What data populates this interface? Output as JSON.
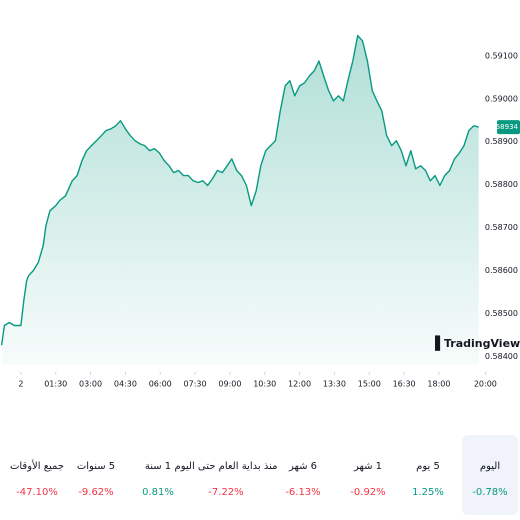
{
  "chart_data": {
    "type": "area",
    "color": "#089981",
    "x": [
      -0.83,
      -0.71,
      -0.5,
      -0.29,
      0,
      0.125,
      0.25,
      0.33,
      0.54,
      0.75,
      0.96,
      1.08,
      1.25,
      1.5,
      1.67,
      1.92,
      2.21,
      2.42,
      2.63,
      2.83,
      3.04,
      3.25,
      3.46,
      3.67,
      3.88,
      4.08,
      4.29,
      4.5,
      4.71,
      4.92,
      5.13,
      5.33,
      5.54,
      5.75,
      5.96,
      6.17,
      6.38,
      6.58,
      6.79,
      7,
      7.21,
      7.42,
      7.63,
      7.83,
      8.04,
      8.25,
      8.46,
      8.67,
      8.88,
      9.08,
      9.29,
      9.5,
      9.71,
      9.92,
      10.13,
      10.33,
      10.54,
      10.75,
      10.96,
      11.17,
      11.38,
      11.58,
      11.79,
      12,
      12.21,
      12.42,
      12.63,
      12.83,
      13.04,
      13.25,
      13.46,
      13.67,
      13.88,
      14.08,
      14.29,
      14.5,
      14.71,
      14.92,
      15.13,
      15.33,
      15.54,
      15.75,
      15.96,
      16.17,
      16.38,
      16.58,
      16.79,
      17,
      17.21,
      17.42,
      17.63,
      17.83,
      18.04,
      18.25,
      18.46,
      18.67,
      18.88,
      19.08,
      19.29,
      19.5,
      19.71
    ],
    "values": [
      0.58426,
      0.58472,
      0.58479,
      0.58472,
      0.58472,
      0.5853,
      0.58577,
      0.58588,
      0.586,
      0.58619,
      0.58658,
      0.58705,
      0.58739,
      0.58751,
      0.58763,
      0.58774,
      0.58809,
      0.58821,
      0.58856,
      0.58879,
      0.58891,
      0.58902,
      0.58914,
      0.58926,
      0.5893,
      0.58937,
      0.58949,
      0.5893,
      0.58914,
      0.58902,
      0.58895,
      0.58891,
      0.58879,
      0.58884,
      0.58874,
      0.58856,
      0.58844,
      0.58828,
      0.58833,
      0.58821,
      0.58821,
      0.58809,
      0.58805,
      0.58809,
      0.58798,
      0.58814,
      0.58833,
      0.58828,
      0.58844,
      0.5886,
      0.58833,
      0.58821,
      0.58798,
      0.58751,
      0.58786,
      0.58844,
      0.58879,
      0.58891,
      0.58902,
      0.58972,
      0.5903,
      0.59042,
      0.59007,
      0.5903,
      0.59037,
      0.59053,
      0.59065,
      0.59088,
      0.59053,
      0.59019,
      0.58995,
      0.59007,
      0.58995,
      0.59042,
      0.59088,
      0.59147,
      0.59135,
      0.59088,
      0.59019,
      0.58995,
      0.58972,
      0.58914,
      0.58891,
      0.58902,
      0.58879,
      0.58844,
      0.58879,
      0.58837,
      0.58844,
      0.58833,
      0.58809,
      0.58821,
      0.58798,
      0.58821,
      0.58833,
      0.5886,
      0.58874,
      0.58891,
      0.58926,
      0.58937,
      0.58934
    ],
    "xlim": [
      -0.9,
      20.5
    ],
    "ylim": [
      0.5838,
      0.5923
    ],
    "xticks": [
      {
        "value": 0,
        "label": "2"
      },
      {
        "value": 1.5,
        "label": "01:30"
      },
      {
        "value": 3,
        "label": "03:00"
      },
      {
        "value": 4.5,
        "label": "04:30"
      },
      {
        "value": 6,
        "label": "06:00"
      },
      {
        "value": 7.5,
        "label": "07:30"
      },
      {
        "value": 9,
        "label": "09:00"
      },
      {
        "value": 10.5,
        "label": "10:30"
      },
      {
        "value": 12,
        "label": "12:00"
      },
      {
        "value": 13.5,
        "label": "13:30"
      },
      {
        "value": 15,
        "label": "15:00"
      },
      {
        "value": 16.5,
        "label": "16:30"
      },
      {
        "value": 18,
        "label": "18:00"
      },
      {
        "value": 20,
        "label": "20:00"
      }
    ],
    "yticks": [
      {
        "value": 0.584,
        "label": "0.58400"
      },
      {
        "value": 0.585,
        "label": "0.58500"
      },
      {
        "value": 0.586,
        "label": "0.58600"
      },
      {
        "value": 0.587,
        "label": "0.58700"
      },
      {
        "value": 0.588,
        "label": "0.58800"
      },
      {
        "value": 0.589,
        "label": "0.58900"
      },
      {
        "value": 0.59,
        "label": "0.59000"
      },
      {
        "value": 0.591,
        "label": "0.59100"
      }
    ],
    "last_label": "0.58934",
    "logo": "TradingView"
  },
  "periods": [
    {
      "label": "اليوم",
      "change": "-0.78%"
    },
    {
      "label": "5 يوم",
      "change": "1.25%"
    },
    {
      "label": "1 شهر",
      "change": "-0.92%"
    },
    {
      "label": "6 شهر",
      "change": "-6.13%"
    },
    {
      "label": "منذ بداية العام حتى اليوم",
      "change": "-7.22%"
    },
    {
      "label": "1 سنة",
      "change": "0.81%"
    },
    {
      "label": "5 سنوات",
      "change": "-9.62%"
    },
    {
      "label": "جميع الأوقات",
      "change": "-47.10%"
    }
  ],
  "selected": 0
}
